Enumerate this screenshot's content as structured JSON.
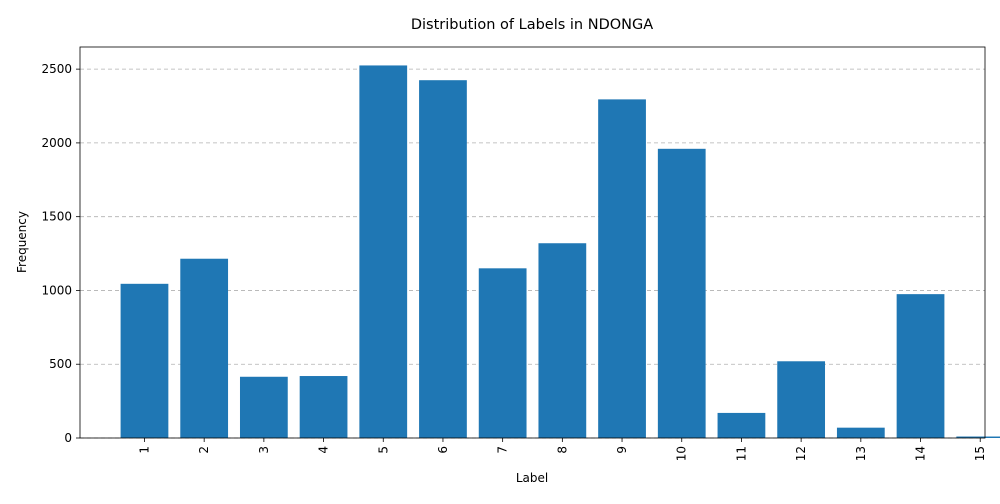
{
  "chart_data": {
    "type": "bar",
    "title": "Distribution of Labels in NDONGA",
    "xlabel": "Label",
    "ylabel": "Frequency",
    "categories": [
      "1",
      "2",
      "3",
      "4",
      "5",
      "6",
      "7",
      "8",
      "9",
      "10",
      "11",
      "12",
      "13",
      "14",
      "15"
    ],
    "values": [
      1045,
      1215,
      415,
      420,
      2525,
      2425,
      1150,
      1320,
      2295,
      1960,
      170,
      520,
      70,
      975,
      10
    ],
    "ylim": [
      0,
      2650
    ],
    "yticks": [
      0,
      500,
      1000,
      1500,
      2000,
      2500
    ],
    "bar_color": "#1f77b4",
    "grid": "y-dashed",
    "xtick_rotation": "vertical"
  }
}
